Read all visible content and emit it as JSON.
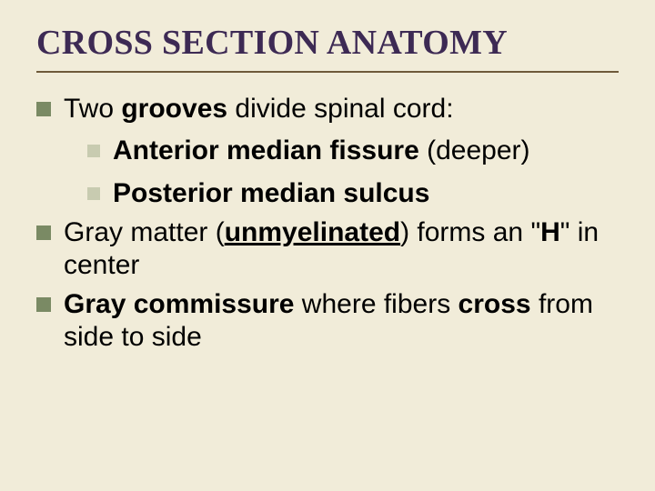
{
  "colors": {
    "background": "#f1ecd9",
    "title": "#3d2a54",
    "rule": "#6e5a3a",
    "body_text": "#000000",
    "bullet_lvl1": "#7a8a64",
    "bullet_lvl2": "#c8cbb0"
  },
  "typography": {
    "title_family": "Times New Roman, serif",
    "title_size_pt": 28,
    "body_family": "Arial, sans-serif",
    "body_size_pt": 22
  },
  "title": "CROSS SECTION ANATOMY",
  "bullets": {
    "b1_pre": "Two ",
    "b1_bold": "grooves",
    "b1_post": " divide spinal cord:",
    "b1a_bold": "Anterior median fissure",
    "b1a_post": " (deeper)",
    "b1b_bold": "Posterior median sulcus",
    "b2_pre": "Gray matter (",
    "b2_bold_u": "unmyelinated",
    "b2_mid": ") forms an \"",
    "b2_bold2": "H",
    "b2_post": "\" in center",
    "b3_bold": "Gray commissure",
    "b3_mid": " where fibers ",
    "b3_bold2": "cross",
    "b3_post": " from side to side"
  }
}
